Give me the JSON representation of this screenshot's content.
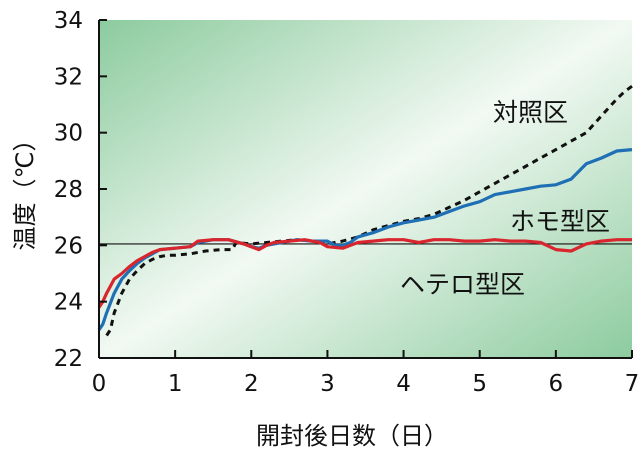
{
  "chart_data": {
    "type": "line",
    "xlabel": "開封後日数（日）",
    "ylabel": "温度（℃）",
    "xlim": [
      0,
      7
    ],
    "ylim": [
      22,
      34
    ],
    "x_ticks": [
      "0",
      "1",
      "2",
      "3",
      "4",
      "5",
      "6",
      "7"
    ],
    "y_ticks": [
      "22",
      "24",
      "26",
      "28",
      "30",
      "32",
      "34"
    ],
    "reference_line": 26.05,
    "colors": {
      "control": "#111111",
      "homo": "#1f6fb5",
      "hetero": "#d9262e",
      "bg_dark": "#8ccb9e",
      "bg_light": "#f2f9f3"
    },
    "series": [
      {
        "name": "対照区",
        "style": "dotted",
        "x": [
          0.1,
          0.15,
          0.2,
          0.3,
          0.4,
          0.5,
          0.6,
          0.7,
          0.8,
          0.9,
          1.0,
          1.2,
          1.4,
          1.6,
          1.75,
          1.8,
          2.0,
          2.2,
          2.4,
          2.6,
          2.8,
          3.0,
          3.2,
          3.4,
          3.6,
          3.8,
          4.0,
          4.2,
          4.4,
          4.6,
          4.8,
          5.0,
          5.2,
          5.4,
          5.6,
          5.8,
          6.0,
          6.2,
          6.4,
          6.5,
          6.6,
          6.7,
          6.8,
          6.9,
          7.0
        ],
        "y": [
          22.8,
          23.0,
          23.6,
          24.3,
          24.8,
          25.1,
          25.35,
          25.5,
          25.6,
          25.65,
          25.65,
          25.7,
          25.8,
          25.85,
          25.85,
          26.1,
          26.05,
          26.1,
          26.15,
          26.2,
          26.15,
          26.05,
          26.15,
          26.3,
          26.55,
          26.7,
          26.85,
          26.95,
          27.1,
          27.35,
          27.6,
          27.9,
          28.2,
          28.5,
          28.8,
          29.1,
          29.4,
          29.7,
          30.0,
          30.3,
          30.6,
          30.9,
          31.2,
          31.45,
          31.65
        ]
      },
      {
        "name": "ホモ型区",
        "style": "solid",
        "x": [
          0.0,
          0.05,
          0.1,
          0.2,
          0.3,
          0.4,
          0.5,
          0.6,
          0.7,
          0.8,
          1.0,
          1.2,
          1.3,
          1.5,
          1.7,
          1.9,
          2.0,
          2.1,
          2.2,
          2.4,
          2.6,
          2.8,
          3.0,
          3.1,
          3.2,
          3.3,
          3.4,
          3.6,
          3.8,
          4.0,
          4.2,
          4.4,
          4.6,
          4.8,
          5.0,
          5.2,
          5.4,
          5.6,
          5.8,
          6.0,
          6.2,
          6.4,
          6.6,
          6.8,
          7.0
        ],
        "y": [
          23.0,
          23.2,
          23.6,
          24.3,
          24.8,
          25.1,
          25.35,
          25.55,
          25.7,
          25.85,
          25.9,
          25.95,
          26.1,
          26.2,
          26.2,
          26.05,
          25.95,
          25.9,
          26.0,
          26.1,
          26.2,
          26.15,
          26.15,
          26.0,
          26.0,
          26.1,
          26.3,
          26.45,
          26.65,
          26.8,
          26.9,
          27.0,
          27.2,
          27.4,
          27.55,
          27.8,
          27.9,
          28.0,
          28.1,
          28.15,
          28.35,
          28.9,
          29.1,
          29.35,
          29.4
        ]
      },
      {
        "name": "ヘテロ型区",
        "style": "solid",
        "x": [
          0.0,
          0.05,
          0.1,
          0.2,
          0.3,
          0.4,
          0.5,
          0.6,
          0.7,
          0.8,
          1.0,
          1.2,
          1.3,
          1.5,
          1.7,
          1.9,
          2.0,
          2.1,
          2.2,
          2.3,
          2.5,
          2.7,
          2.9,
          3.0,
          3.2,
          3.4,
          3.6,
          3.8,
          4.0,
          4.2,
          4.4,
          4.6,
          4.8,
          5.0,
          5.2,
          5.4,
          5.6,
          5.8,
          6.0,
          6.2,
          6.4,
          6.6,
          6.8,
          7.0
        ],
        "y": [
          23.8,
          24.0,
          24.3,
          24.8,
          25.0,
          25.25,
          25.45,
          25.6,
          25.75,
          25.85,
          25.9,
          25.95,
          26.15,
          26.2,
          26.2,
          26.05,
          25.95,
          25.85,
          26.0,
          26.1,
          26.15,
          26.2,
          26.1,
          25.95,
          25.9,
          26.1,
          26.15,
          26.2,
          26.2,
          26.1,
          26.2,
          26.2,
          26.15,
          26.15,
          26.2,
          26.15,
          26.15,
          26.1,
          25.85,
          25.8,
          26.05,
          26.15,
          26.2,
          26.2
        ]
      }
    ],
    "annotations": [
      "対照区",
      "ホモ型区",
      "ヘテロ型区"
    ]
  }
}
